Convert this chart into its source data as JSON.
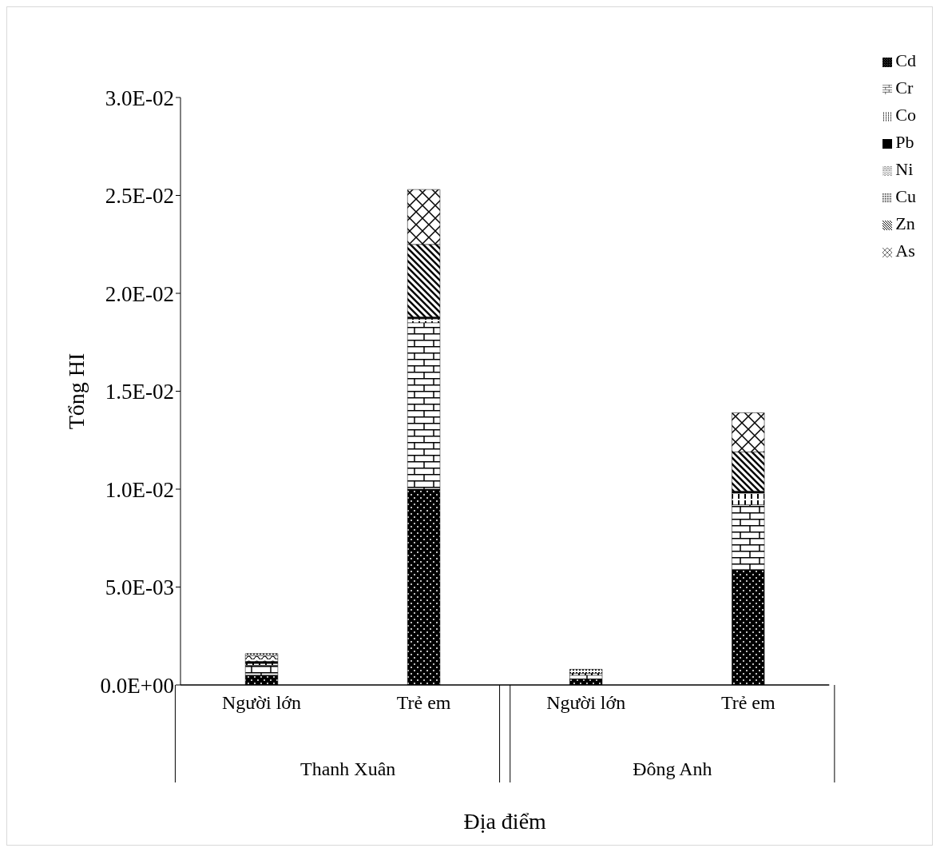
{
  "chart_data": {
    "type": "bar",
    "stacked": true,
    "ylabel": "Tổng HI",
    "xlabel": "Địa điểm",
    "categories": [
      "Người lớn",
      "Trẻ em",
      "Người lớn",
      "Trẻ em"
    ],
    "annotations": [
      "Thanh Xuân",
      "Đông Anh"
    ],
    "series": [
      {
        "name": "Cd",
        "color": "#000000",
        "values": [
          0.0005,
          0.01,
          0.0003,
          0.0059
        ]
      },
      {
        "name": "Cr",
        "color": "#000000",
        "values": [
          0.0005,
          0.0085,
          0.0002,
          0.0033
        ]
      },
      {
        "name": "Co",
        "color": "#000000",
        "values": [
          0.0001,
          0.0002,
          0.0001,
          0.0006
        ]
      },
      {
        "name": "Pb",
        "color": "#000000",
        "values": [
          0.0001,
          0.0001,
          0,
          0.0001
        ]
      },
      {
        "name": "Ni",
        "color": "#000000",
        "values": [
          0.0003,
          0,
          0,
          0
        ]
      },
      {
        "name": "Cu",
        "color": "#000000",
        "values": [
          0.0001,
          0,
          0.0002,
          0
        ]
      },
      {
        "name": "Zn",
        "color": "#000000",
        "values": [
          0,
          0.0037,
          0,
          0.002
        ]
      },
      {
        "name": "As",
        "color": "#000000",
        "values": [
          0,
          0.0028,
          0,
          0.002
        ]
      }
    ],
    "ylim": [
      0,
      0.03
    ],
    "yticks": [
      {
        "value": 0,
        "label": "0.0E+00"
      },
      {
        "value": 0.005,
        "label": "5.0E-03"
      },
      {
        "value": 0.01,
        "label": "1.0E-02"
      },
      {
        "value": 0.015,
        "label": "1.5E-02"
      },
      {
        "value": 0.02,
        "label": "2.0E-02"
      },
      {
        "value": 0.025,
        "label": "2.5E-02"
      },
      {
        "value": 0.03,
        "label": "3.0E-02"
      }
    ],
    "grid": false,
    "legend": "top right"
  }
}
